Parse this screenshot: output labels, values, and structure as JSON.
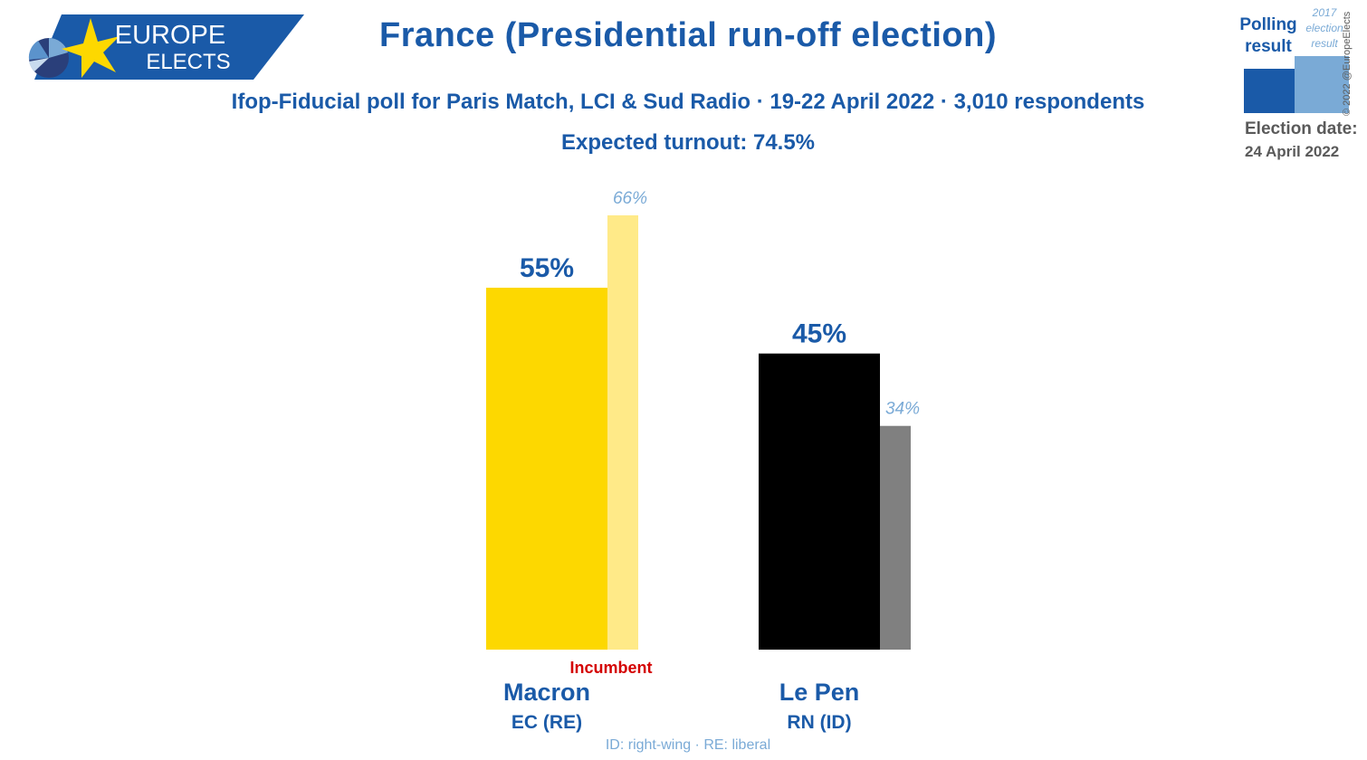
{
  "header": {
    "logo_line1": "EUROPE",
    "logo_line2": "ELECTS",
    "title": "France (Presidential run-off election)",
    "subtitle": "Ifop-Fiducial poll for Paris Match, LCI & Sud Radio · 19-22 April 2022 · 3,010 respondents",
    "turnout": "Expected turnout: 74.5%"
  },
  "legend": {
    "polling_label": "Polling result",
    "previous_label": "2017 election result",
    "election_date_label": "Election date:",
    "election_date": "24 April 2022",
    "copyright": "© 2022 @EuropeElects"
  },
  "footnote": "ID: right-wing · RE: liberal",
  "colors": {
    "accent": "#1a5aa8",
    "accent_light": "#7aaad6",
    "incumbent": "#d40000",
    "grey_text": "#5a5a5a"
  },
  "chart_data": {
    "type": "bar",
    "categories": [
      "Macron",
      "Le Pen"
    ],
    "parties": [
      "EC (RE)",
      "RN (ID)"
    ],
    "series": [
      {
        "values": [
          55,
          45
        ],
        "labels": [
          "55%",
          "45%"
        ]
      },
      {
        "values": [
          66,
          34
        ],
        "labels": [
          "66%",
          "34%"
        ]
      }
    ],
    "bar_colors": [
      "#fdd800",
      "#000000"
    ],
    "previous_colors": [
      "#ffea88",
      "#808080"
    ],
    "annotation": {
      "category_index": 0,
      "text": "Incumbent"
    },
    "ylim": [
      0,
      66
    ]
  }
}
